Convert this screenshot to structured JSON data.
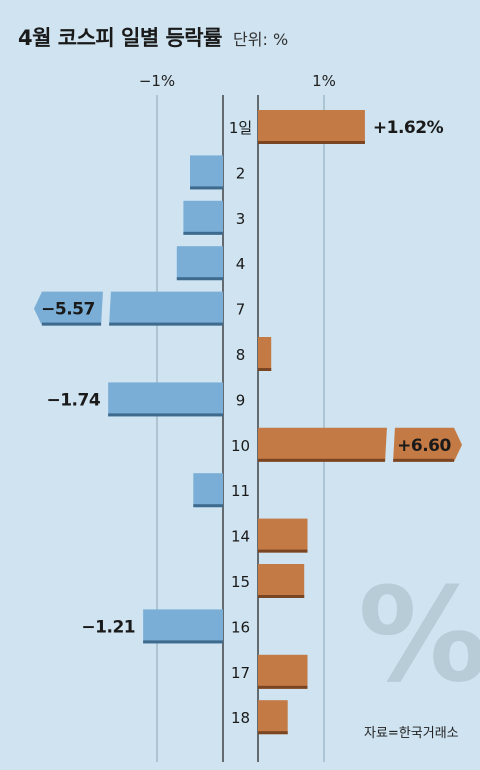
{
  "chart_data": {
    "type": "bar",
    "orientation": "horizontal",
    "title": "4월 코스피 일별 등락률",
    "unit_label": "단위: %",
    "source": "자료=한국거래소",
    "watermark": "%",
    "x_ticks": [
      {
        "value": -1,
        "label": "−1%"
      },
      {
        "value": 1,
        "label": "1%"
      }
    ],
    "categories": [
      "1일",
      "2",
      "3",
      "4",
      "7",
      "8",
      "9",
      "10",
      "11",
      "14",
      "15",
      "16",
      "17",
      "18"
    ],
    "values": [
      1.62,
      -0.5,
      -0.6,
      -0.7,
      -5.57,
      0.2,
      -1.74,
      6.6,
      -0.45,
      0.75,
      0.7,
      -1.21,
      0.75,
      0.45
    ],
    "value_labels": [
      "+1.62%",
      "",
      "",
      "",
      "−5.57",
      "",
      "−1.74",
      "+6.60",
      "",
      "",
      "",
      "−1.21",
      "",
      ""
    ],
    "truncated": [
      false,
      false,
      false,
      false,
      true,
      false,
      false,
      true,
      false,
      false,
      false,
      false,
      false,
      false
    ],
    "colors": {
      "positive": "#c47a44",
      "positive_shadow": "#7a4522",
      "negative": "#7aaed6",
      "negative_shadow": "#3e6a8e",
      "background": "#cfe3f0",
      "text": "#1a1a1a"
    }
  }
}
